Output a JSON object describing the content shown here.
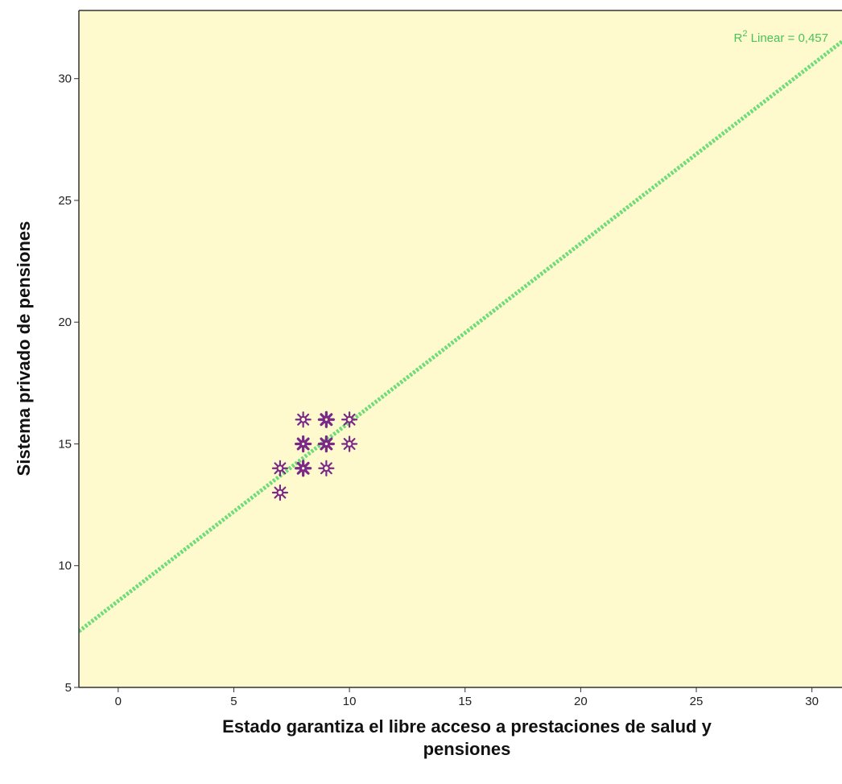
{
  "chart_data": {
    "type": "scatter",
    "title": "",
    "xlabel_lines": [
      "Estado garantiza el libre acceso a prestaciones de salud y",
      "pensiones"
    ],
    "ylabel": "Sistema privado de pensiones",
    "xlim": [
      -1.7,
      31.3
    ],
    "ylim": [
      5,
      32.8
    ],
    "x_ticks": [
      0,
      5,
      10,
      15,
      20,
      25,
      30
    ],
    "y_ticks": [
      5,
      10,
      15,
      20,
      25,
      30
    ],
    "points": [
      {
        "x": 7,
        "y": 13,
        "weight": "normal"
      },
      {
        "x": 7,
        "y": 14,
        "weight": "normal"
      },
      {
        "x": 8,
        "y": 14,
        "weight": "bold"
      },
      {
        "x": 8,
        "y": 15,
        "weight": "bold"
      },
      {
        "x": 8,
        "y": 16,
        "weight": "normal"
      },
      {
        "x": 9,
        "y": 14,
        "weight": "normal"
      },
      {
        "x": 9,
        "y": 15,
        "weight": "bold"
      },
      {
        "x": 9,
        "y": 16,
        "weight": "bold"
      },
      {
        "x": 10,
        "y": 15,
        "weight": "normal"
      },
      {
        "x": 10,
        "y": 16,
        "weight": "normal"
      }
    ],
    "fit_line": {
      "type": "linear",
      "intercept": 8.55,
      "slope": 0.734,
      "annotation": {
        "base": "R",
        "sup": "2",
        "text": " Linear = 0,457"
      }
    },
    "grid": false,
    "legend": "none"
  },
  "colors": {
    "plot_background": "#FFFACD",
    "marker": "#7A2A86",
    "fit_line": "#6EDC7A",
    "annotation_text": "#49C25A",
    "axis": "#333333",
    "outside": "#FFFFFF"
  },
  "marker_icon": "gear-icon"
}
